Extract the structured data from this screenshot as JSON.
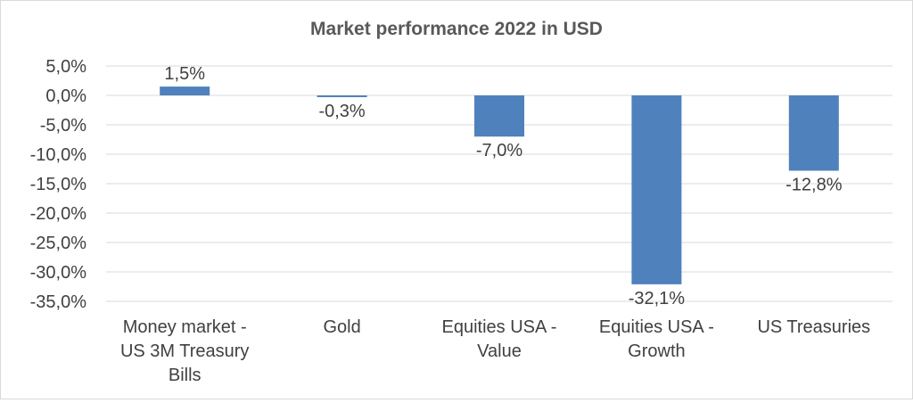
{
  "chart_data": {
    "type": "bar",
    "title": "Market performance 2022 in USD",
    "categories": [
      [
        "Money market -",
        "US 3M Treasury",
        "Bills"
      ],
      [
        "Gold"
      ],
      [
        "Equities USA -",
        "Value"
      ],
      [
        "Equities USA -",
        "Growth"
      ],
      [
        "US Treasuries"
      ]
    ],
    "values": [
      1.5,
      -0.3,
      -7.0,
      -32.1,
      -12.8
    ],
    "data_labels": [
      "1,5%",
      "-0,3%",
      "-7,0%",
      "-32,1%",
      "-12,8%"
    ],
    "ylim": [
      -35,
      5
    ],
    "yticks": [
      5,
      0,
      -5,
      -10,
      -15,
      -20,
      -25,
      -30,
      -35
    ],
    "ytick_labels": [
      "5,0%",
      "0,0%",
      "-5,0%",
      "-10,0%",
      "-15,0%",
      "-20,0%",
      "-25,0%",
      "-30,0%",
      "-35,0%"
    ],
    "grid": true,
    "bar_color": "#4f81bd",
    "xlabel": "",
    "ylabel": ""
  }
}
